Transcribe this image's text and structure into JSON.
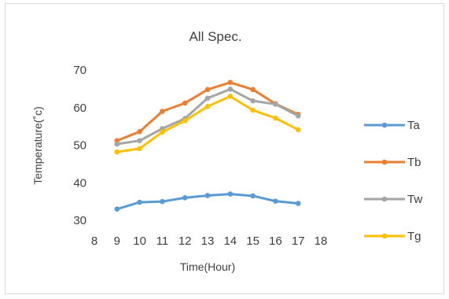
{
  "chart_data": {
    "type": "line",
    "title": "All Spec.",
    "xlabel": "Time(Hour)",
    "ylabel": "Temperature(˚c)",
    "xlim": [
      8,
      18
    ],
    "ylim": [
      30,
      70
    ],
    "x_ticks": [
      8,
      9,
      10,
      11,
      12,
      13,
      14,
      15,
      16,
      17,
      18
    ],
    "y_ticks": [
      30,
      40,
      50,
      60,
      70
    ],
    "grid": false,
    "legend_position": "right",
    "x": [
      9,
      10,
      11,
      12,
      13,
      14,
      15,
      16,
      17
    ],
    "series": [
      {
        "name": "Ta",
        "color": "#5b9bd5",
        "values": [
          33.0,
          34.8,
          35.0,
          36.0,
          36.6,
          37.0,
          36.5,
          35.1,
          34.5
        ]
      },
      {
        "name": "Tb",
        "color": "#ed7d31",
        "values": [
          51.2,
          53.6,
          59.0,
          61.2,
          64.8,
          66.7,
          64.8,
          61.0,
          58.2
        ]
      },
      {
        "name": "Tw",
        "color": "#a5a5a5",
        "values": [
          50.3,
          51.2,
          54.4,
          57.1,
          62.5,
          64.9,
          61.8,
          60.9,
          57.8
        ]
      },
      {
        "name": "Tg",
        "color": "#ffc000",
        "values": [
          48.2,
          49.1,
          53.5,
          56.5,
          60.3,
          63.0,
          59.3,
          57.2,
          54.1
        ]
      }
    ]
  }
}
